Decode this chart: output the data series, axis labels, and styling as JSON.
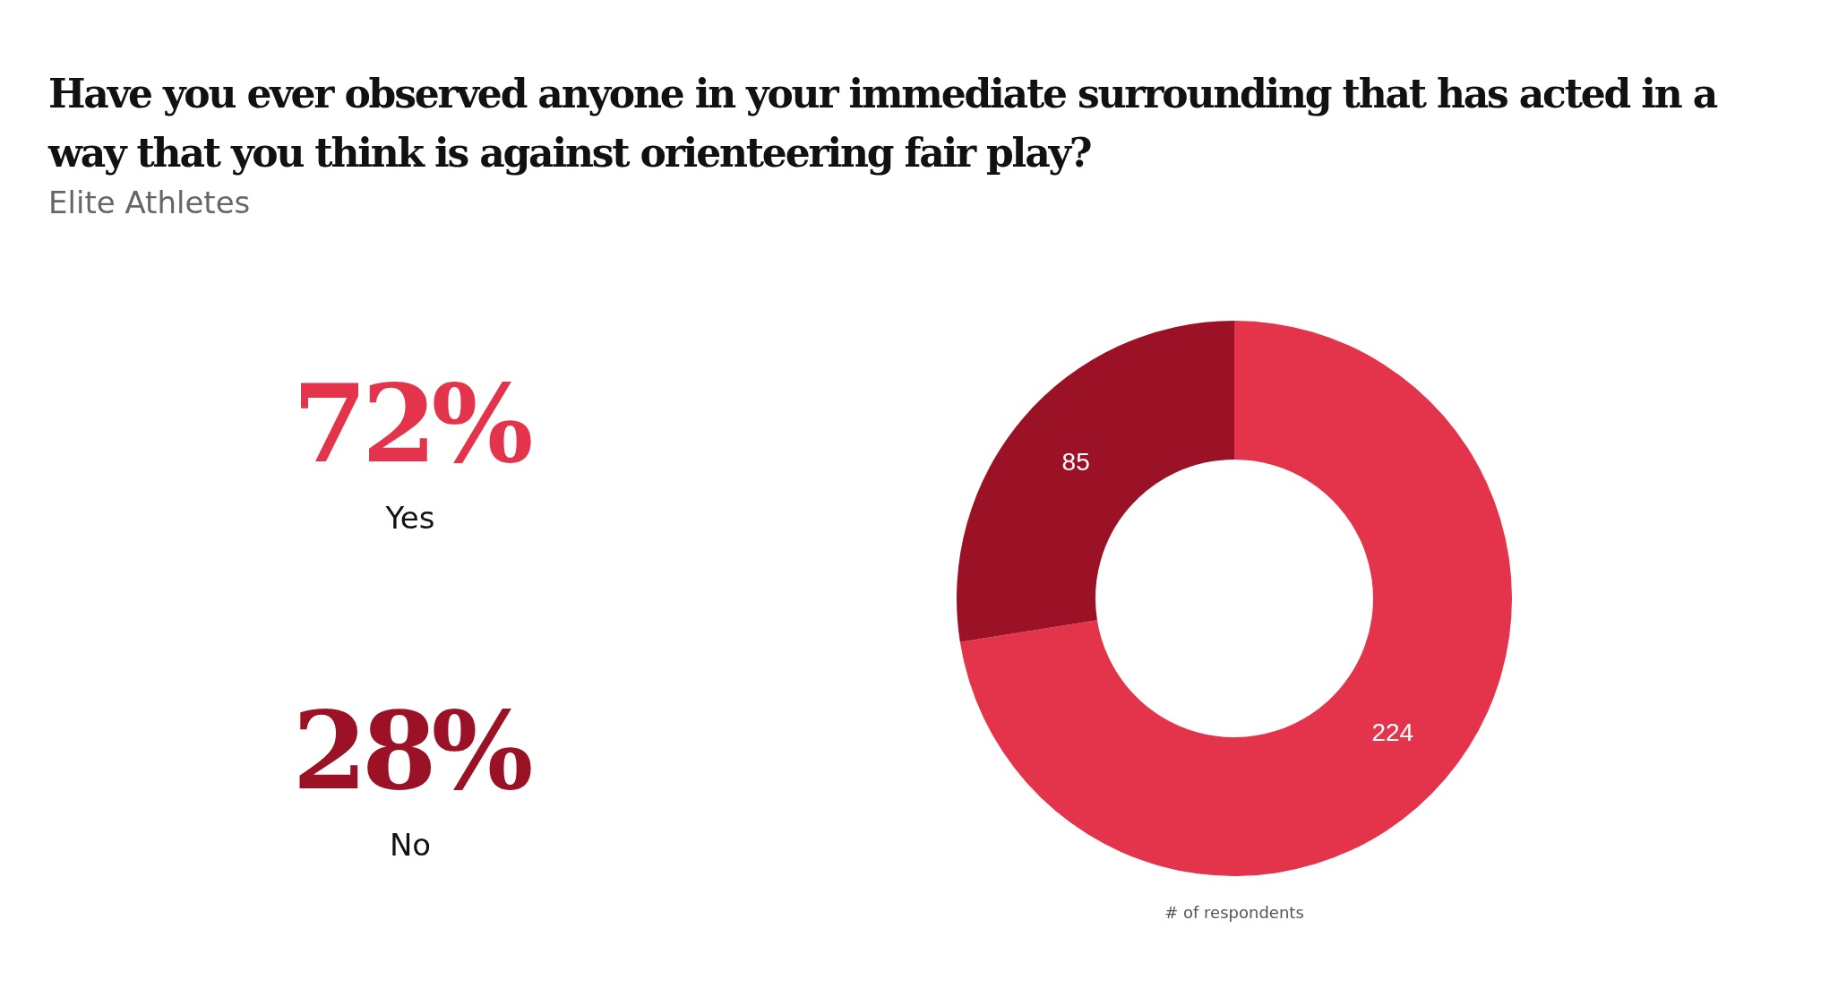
{
  "chart_data": [
    {
      "type": "other",
      "title": "Have you ever observed anyone in your immediate surrounding that has acted in a way that you think is against orienteering fair play?",
      "subtitle": "Elite Athletes",
      "categories": [
        "Yes",
        "No"
      ],
      "value_labels": [
        "72%",
        "28%"
      ],
      "colors": [
        "#e4344b",
        "#9b1126"
      ]
    },
    {
      "type": "donut",
      "categories": [
        null,
        null
      ],
      "values": [
        224,
        85
      ],
      "colors": [
        "#e4344b",
        "#9b1126"
      ],
      "data_labels": true,
      "xlabel": "# of respondents",
      "legend": false
    }
  ]
}
